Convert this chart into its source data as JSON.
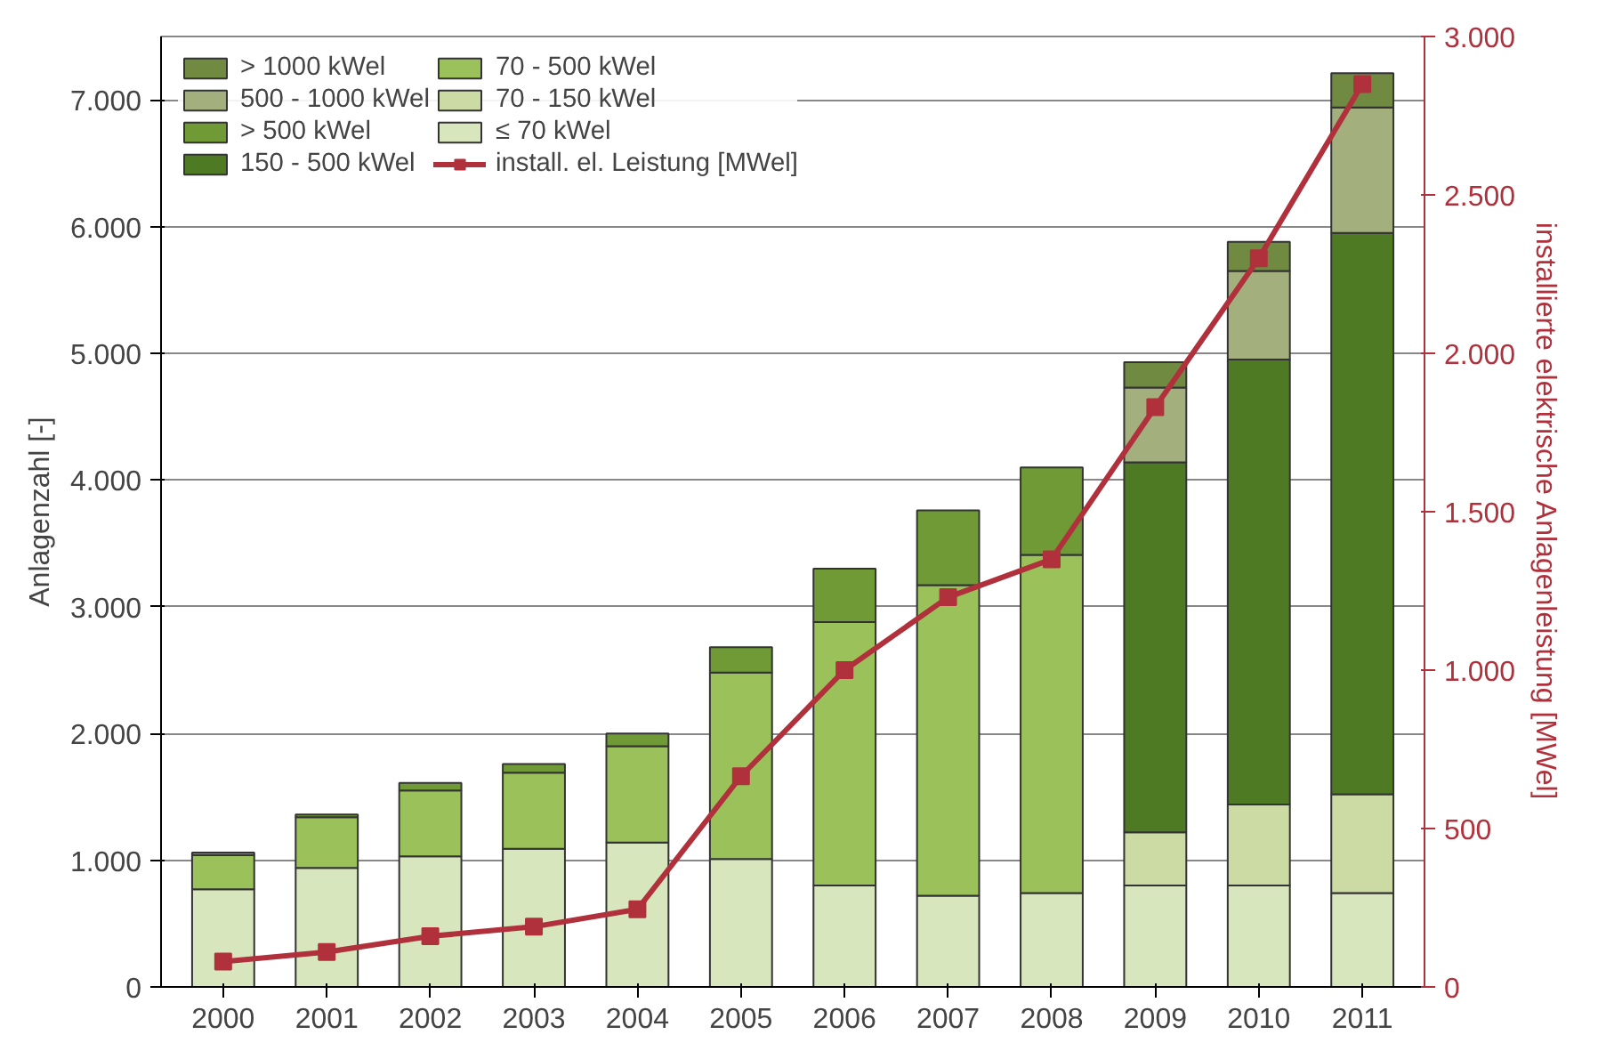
{
  "chart_data": {
    "type": "bar",
    "stacked": true,
    "categories": [
      "2000",
      "2001",
      "2002",
      "2003",
      "2004",
      "2005",
      "2006",
      "2007",
      "2008",
      "2009",
      "2010",
      "2011"
    ],
    "ylabel": "Anlagenzahl [-]",
    "y2label": "installierte elektrische Anlagenleistung [MWel]",
    "ylim": [
      0,
      7500
    ],
    "yticks": [
      0,
      {
        "value": 1000,
        "label": "1.000"
      },
      {
        "value": 2000,
        "label": "2.000"
      },
      {
        "value": 3000,
        "label": "3.000"
      },
      {
        "value": 4000,
        "label": "4.000"
      },
      {
        "value": 5000,
        "label": "5.000"
      },
      {
        "value": 6000,
        "label": "6.000"
      },
      {
        "value": 7000,
        "label": "7.000"
      }
    ],
    "y2lim": [
      0,
      3000
    ],
    "y2ticks": [
      0,
      500,
      {
        "value": 1000,
        "label": "1.000"
      },
      {
        "value": 1500,
        "label": "1.500"
      },
      {
        "value": 2000,
        "label": "2.000"
      },
      {
        "value": 2500,
        "label": "2.500"
      },
      {
        "value": 3000,
        "label": "3.000"
      }
    ],
    "grid": "y",
    "legend": "top left",
    "series": [
      {
        "name": "≤ 70 kWel",
        "color": "#d8e6bd",
        "values": [
          770,
          940,
          1030,
          1090,
          1140,
          1010,
          800,
          720,
          740,
          800,
          800,
          740
        ]
      },
      {
        "name": "70 - 150 kWel",
        "color": "#cbdba3",
        "values": [
          null,
          null,
          null,
          null,
          null,
          null,
          null,
          null,
          null,
          420,
          640,
          780
        ]
      },
      {
        "name": "70 - 500 kWel",
        "color": "#9bc25a",
        "values": [
          270,
          400,
          520,
          600,
          760,
          1470,
          2080,
          2450,
          2670,
          null,
          null,
          null
        ]
      },
      {
        "name": "150 - 500 kWel",
        "color": "#4f7a24",
        "values": [
          null,
          null,
          null,
          null,
          null,
          null,
          null,
          null,
          null,
          2920,
          3510,
          4430
        ]
      },
      {
        "name": "> 500 kWel",
        "color": "#6f9a36",
        "values": [
          20,
          20,
          60,
          70,
          100,
          200,
          420,
          590,
          690,
          null,
          null,
          null
        ]
      },
      {
        "name": "500 - 1000 kWel",
        "color": "#a3b07e",
        "values": [
          null,
          null,
          null,
          null,
          null,
          null,
          null,
          null,
          null,
          590,
          700,
          990
        ]
      },
      {
        "name": "> 1000 kWel",
        "color": "#708a42",
        "values": [
          null,
          null,
          null,
          null,
          null,
          null,
          null,
          null,
          null,
          200,
          230,
          270
        ]
      },
      {
        "name": "install. el. Leistung [MWel]",
        "type": "line",
        "axis": "y2",
        "color": "#b0303c",
        "marker": "square",
        "values": [
          80,
          110,
          160,
          190,
          245,
          665,
          1000,
          1230,
          1350,
          1830,
          2300,
          2850
        ]
      }
    ]
  }
}
